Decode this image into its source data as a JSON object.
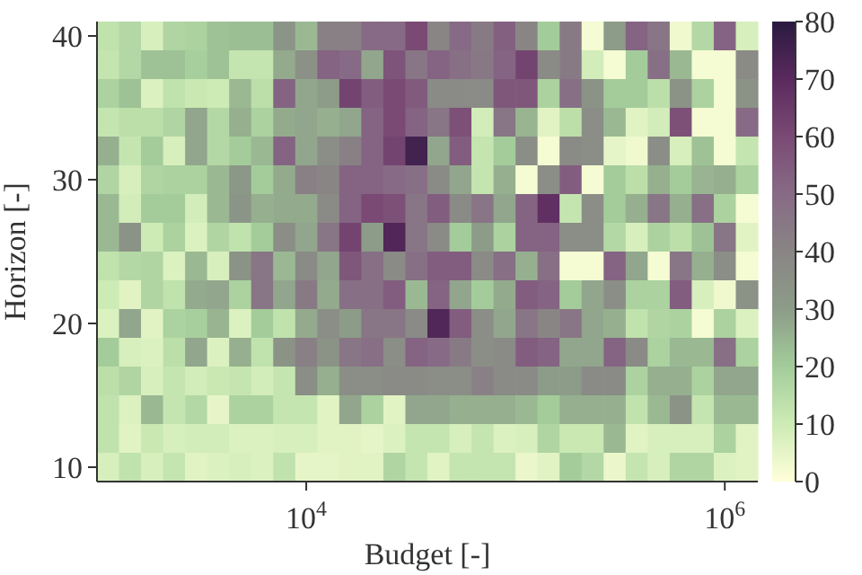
{
  "chart_data": {
    "type": "heatmap",
    "xlabel": "Budget [-]",
    "ylabel": "Horizon [-]",
    "categories": [
      null,
      null,
      null,
      null,
      null,
      null,
      null,
      null,
      null,
      "10$^{4}$",
      null,
      null,
      null,
      null,
      null,
      null,
      null,
      null,
      null,
      null,
      null,
      null,
      null,
      null,
      null,
      null,
      null,
      null,
      "10$^{6}$",
      null
    ],
    "y_categories": [
      "40",
      null,
      null,
      null,
      null,
      "30",
      null,
      null,
      null,
      null,
      "20",
      null,
      null,
      null,
      null,
      "10"
    ],
    "clim": [
      0,
      80
    ],
    "cticks": [
      0,
      10,
      20,
      30,
      40,
      50,
      60,
      70,
      80
    ],
    "cells": [
      [
        13,
        16,
        8,
        17,
        18,
        22,
        23,
        23,
        33,
        24,
        42,
        42,
        50,
        50,
        60,
        40,
        50,
        44,
        53,
        40,
        20,
        44,
        2,
        30,
        52,
        46,
        3,
        16,
        52,
        8
      ],
      [
        12,
        16,
        22,
        22,
        19,
        22,
        12,
        12,
        27,
        35,
        52,
        50,
        28,
        57,
        46,
        52,
        48,
        45,
        52,
        62,
        38,
        44,
        9,
        2,
        20,
        48,
        24,
        2,
        2,
        38
      ],
      [
        18,
        22,
        7,
        13,
        11,
        10,
        24,
        14,
        52,
        28,
        30,
        62,
        54,
        60,
        55,
        38,
        38,
        38,
        56,
        56,
        18,
        48,
        34,
        20,
        20,
        14,
        34,
        18,
        2,
        34
      ],
      [
        12,
        14,
        14,
        17,
        28,
        16,
        26,
        18,
        27,
        28,
        26,
        28,
        52,
        60,
        52,
        46,
        58,
        9,
        46,
        25,
        6,
        14,
        36,
        24,
        6,
        9,
        58,
        2,
        2,
        50
      ],
      [
        26,
        12,
        20,
        8,
        28,
        16,
        20,
        24,
        52,
        28,
        36,
        42,
        52,
        62,
        75,
        28,
        54,
        12,
        20,
        36,
        2,
        38,
        36,
        5,
        3,
        36,
        8,
        22,
        2,
        12
      ],
      [
        17,
        8,
        17,
        18,
        18,
        24,
        32,
        20,
        27,
        42,
        40,
        52,
        52,
        50,
        48,
        38,
        28,
        12,
        26,
        2,
        36,
        54,
        2,
        20,
        14,
        26,
        20,
        25,
        26,
        18
      ],
      [
        24,
        9,
        20,
        20,
        9,
        24,
        33,
        26,
        27,
        27,
        38,
        52,
        60,
        58,
        46,
        54,
        38,
        46,
        28,
        52,
        68,
        12,
        36,
        20,
        26,
        46,
        26,
        48,
        18,
        2
      ],
      [
        24,
        34,
        10,
        18,
        7,
        17,
        13,
        20,
        36,
        28,
        46,
        62,
        30,
        72,
        46,
        38,
        20,
        30,
        18,
        52,
        52,
        36,
        36,
        16,
        8,
        18,
        14,
        22,
        46,
        6
      ],
      [
        13,
        16,
        17,
        7,
        24,
        8,
        34,
        46,
        24,
        38,
        28,
        56,
        48,
        38,
        48,
        54,
        54,
        38,
        48,
        26,
        48,
        2,
        2,
        52,
        28,
        2,
        46,
        26,
        36,
        2
      ],
      [
        10,
        6,
        17,
        13,
        27,
        28,
        18,
        46,
        28,
        44,
        27,
        48,
        48,
        54,
        24,
        52,
        28,
        20,
        27,
        54,
        52,
        20,
        28,
        36,
        18,
        18,
        54,
        8,
        3,
        34
      ],
      [
        7,
        28,
        6,
        18,
        19,
        25,
        7,
        20,
        13,
        27,
        36,
        30,
        46,
        46,
        38,
        72,
        54,
        36,
        28,
        46,
        40,
        46,
        28,
        26,
        13,
        17,
        18,
        2,
        18,
        7
      ],
      [
        20,
        8,
        7,
        14,
        28,
        7,
        26,
        13,
        34,
        42,
        34,
        46,
        48,
        36,
        52,
        50,
        44,
        36,
        38,
        54,
        52,
        28,
        28,
        52,
        38,
        18,
        24,
        24,
        48,
        18
      ],
      [
        14,
        17,
        8,
        12,
        9,
        11,
        12,
        9,
        12,
        36,
        26,
        36,
        36,
        38,
        38,
        36,
        36,
        42,
        38,
        38,
        30,
        30,
        38,
        38,
        18,
        26,
        26,
        18,
        28,
        28
      ],
      [
        13,
        7,
        24,
        12,
        16,
        5,
        18,
        18,
        12,
        12,
        6,
        28,
        18,
        6,
        28,
        28,
        26,
        26,
        26,
        24,
        20,
        26,
        26,
        26,
        13,
        24,
        34,
        12,
        24,
        24
      ],
      [
        13,
        6,
        11,
        8,
        9,
        9,
        7,
        7,
        8,
        8,
        6,
        6,
        5,
        7,
        12,
        12,
        8,
        12,
        7,
        8,
        17,
        11,
        11,
        24,
        6,
        8,
        8,
        8,
        18,
        6
      ],
      [
        8,
        13,
        8,
        12,
        6,
        7,
        8,
        7,
        13,
        5,
        5,
        6,
        6,
        17,
        12,
        6,
        12,
        12,
        12,
        4,
        6,
        20,
        16,
        4,
        12,
        8,
        17,
        17,
        7,
        6
      ]
    ]
  }
}
